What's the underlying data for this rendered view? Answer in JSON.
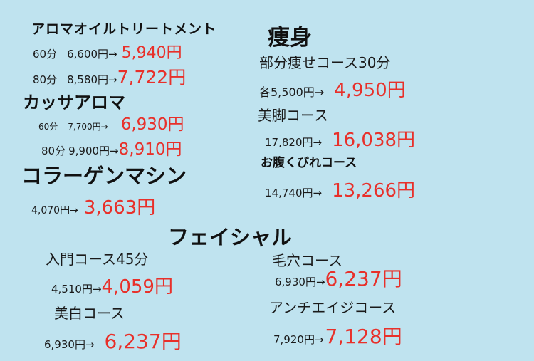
{
  "aroma": {
    "title": "アロマオイルトリートメント",
    "rows": [
      {
        "label": "60分",
        "orig": "6,600円",
        "arrow": "→",
        "sale": "5,940円"
      },
      {
        "label": "80分",
        "orig": "8,580円",
        "arrow": "→",
        "sale": "7,722円"
      }
    ]
  },
  "kassa": {
    "title": "カッサアロマ",
    "rows": [
      {
        "label": "60分",
        "orig": "7,700円",
        "arrow": "→",
        "sale": "6,930円"
      },
      {
        "label": "80分",
        "orig": "9,900円",
        "arrow": "→",
        "sale": "8,910円"
      }
    ]
  },
  "collagen": {
    "title": "コラーゲンマシン",
    "orig": "4,070円",
    "arrow": "→",
    "sale": "3,663円"
  },
  "slim": {
    "title": "痩身",
    "items": [
      {
        "name": "部分痩せコース30分",
        "orig": "各5,500円",
        "arrow": "→",
        "sale": "4,950円"
      },
      {
        "name": "美脚コース",
        "orig": "17,820円",
        "arrow": "→",
        "sale": "16,038円"
      },
      {
        "name": "お腹くびれコース",
        "orig": "14,740円",
        "arrow": "→",
        "sale": "13,266円"
      }
    ]
  },
  "facial": {
    "title": "フェイシャル",
    "items": [
      {
        "name": "入門コース45分",
        "orig": "4,510円",
        "arrow": "→",
        "sale": "4,059円"
      },
      {
        "name": "美白コース",
        "orig": "6,930円",
        "arrow": "→",
        "sale": "6,237円"
      },
      {
        "name": "毛穴コース",
        "orig": "6,930円",
        "arrow": "→",
        "sale": "6,237円"
      },
      {
        "name": "アンチエイジコース",
        "orig": "7,920円",
        "arrow": "→",
        "sale": "7,128円"
      }
    ]
  },
  "colors": {
    "background": "#bfe3ef",
    "sale_price": "#e8302a",
    "text": "#1a1a1a"
  }
}
